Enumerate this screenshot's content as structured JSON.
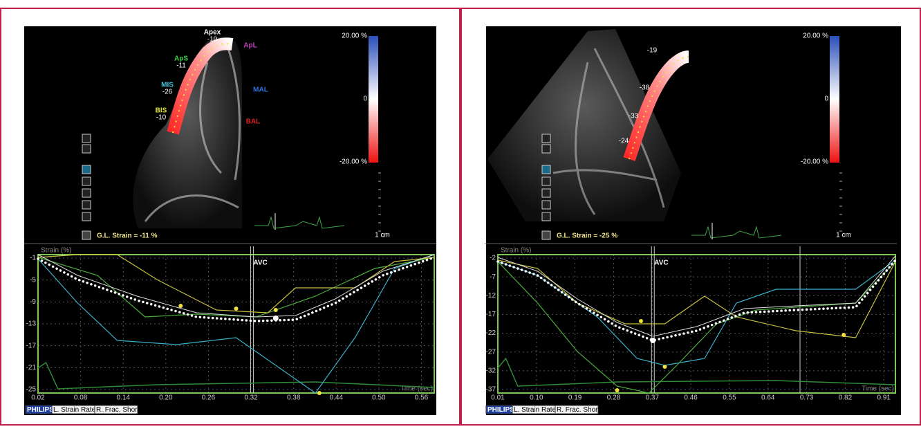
{
  "panels": [
    {
      "segments": [
        {
          "name": "Apex",
          "value": "-10"
        },
        {
          "name": "ApS",
          "value": "-11"
        },
        {
          "name": "ApL"
        },
        {
          "name": "MIS",
          "value": "-26"
        },
        {
          "name": "MAL"
        },
        {
          "name": "BIS",
          "value": "-10"
        },
        {
          "name": "BAL"
        }
      ],
      "scale": {
        "top": "20.00 %",
        "middle": "0",
        "bottom": "-20.00 %",
        "unit": "1 cm"
      },
      "global_strain": "G.L. Strain = -11 %",
      "graph": {
        "y_label": "Strain (%)",
        "marker": "AVC",
        "x_label": "Time (sec)",
        "yticks": [
          "-1",
          "-5",
          "-9",
          "-13",
          "-17",
          "-21",
          "-25"
        ],
        "xticks": [
          "0.02",
          "0.08",
          "0.14",
          "0.20",
          "0.26",
          "0.32",
          "0.38",
          "0.44",
          "0.50",
          "0.56"
        ]
      },
      "tabs": [
        "PHILIPS",
        "L. Strain Rate",
        "R. Frac. Short"
      ]
    },
    {
      "segments": [
        {
          "value": "-19"
        },
        {
          "value": "-38"
        },
        {
          "value": "-33"
        },
        {
          "value": "-24"
        }
      ],
      "scale": {
        "top": "20.00 %",
        "middle": "0",
        "bottom": "-20.00 %",
        "unit": "1 cm"
      },
      "global_strain": "G.L. Strain = -25 %",
      "graph": {
        "y_label": "Strain (%)",
        "marker": "AVC",
        "x_label": "Time (sec)",
        "yticks": [
          "-2",
          "-7",
          "-12",
          "-17",
          "-22",
          "-27",
          "-32",
          "-37"
        ],
        "xticks": [
          "0.01",
          "0.10",
          "0.19",
          "0.28",
          "0.37",
          "0.46",
          "0.55",
          "0.64",
          "0.73",
          "0.82",
          "0.91"
        ]
      },
      "tabs": [
        "PHILIPS",
        "L. Strain Rate",
        "R. Frac. Short"
      ]
    }
  ]
}
